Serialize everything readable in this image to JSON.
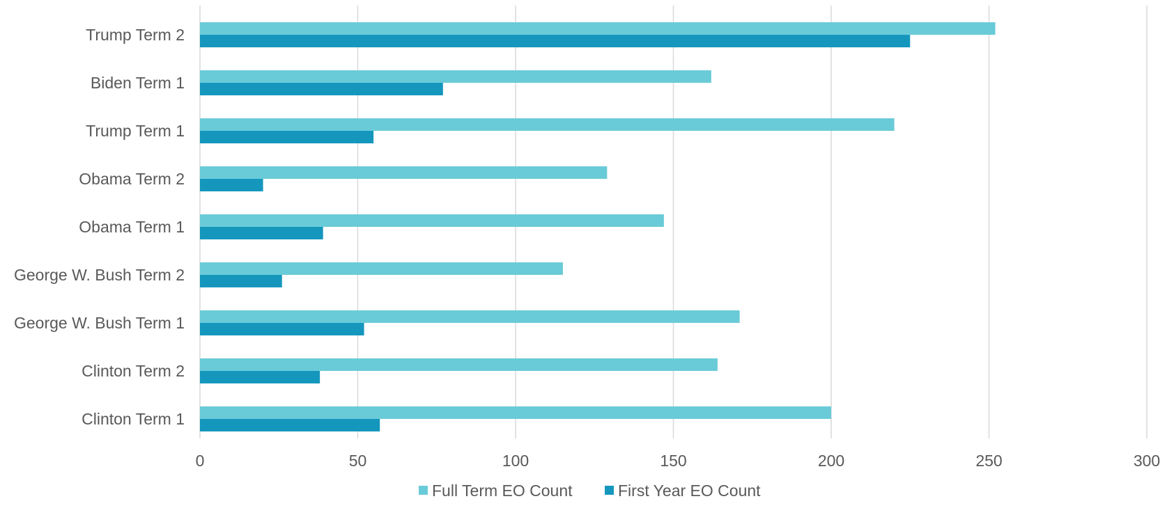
{
  "chart_data": {
    "type": "bar",
    "orientation": "horizontal",
    "categories": [
      "Trump Term 2",
      "Biden Term 1",
      "Trump Term 1",
      "Obama Term 2",
      "Obama Term 1",
      "George W. Bush Term 2",
      "George W. Bush Term 1",
      "Clinton Term 2",
      "Clinton Term 1"
    ],
    "series": [
      {
        "name": "Full Term EO Count",
        "color": "#6acbd8",
        "values": [
          252,
          162,
          220,
          129,
          147,
          115,
          171,
          164,
          200
        ]
      },
      {
        "name": "First Year EO Count",
        "color": "#1597bd",
        "values": [
          225,
          77,
          55,
          20,
          39,
          26,
          52,
          38,
          57
        ]
      }
    ],
    "xlim": [
      0,
      300
    ],
    "xticks": [
      0,
      50,
      100,
      150,
      200,
      250,
      300
    ],
    "title": "",
    "xlabel": "",
    "ylabel": "",
    "grid": "vertical",
    "legend_position": "bottom",
    "gridline_color": "#d9d9d9",
    "text_color": "#595959"
  }
}
